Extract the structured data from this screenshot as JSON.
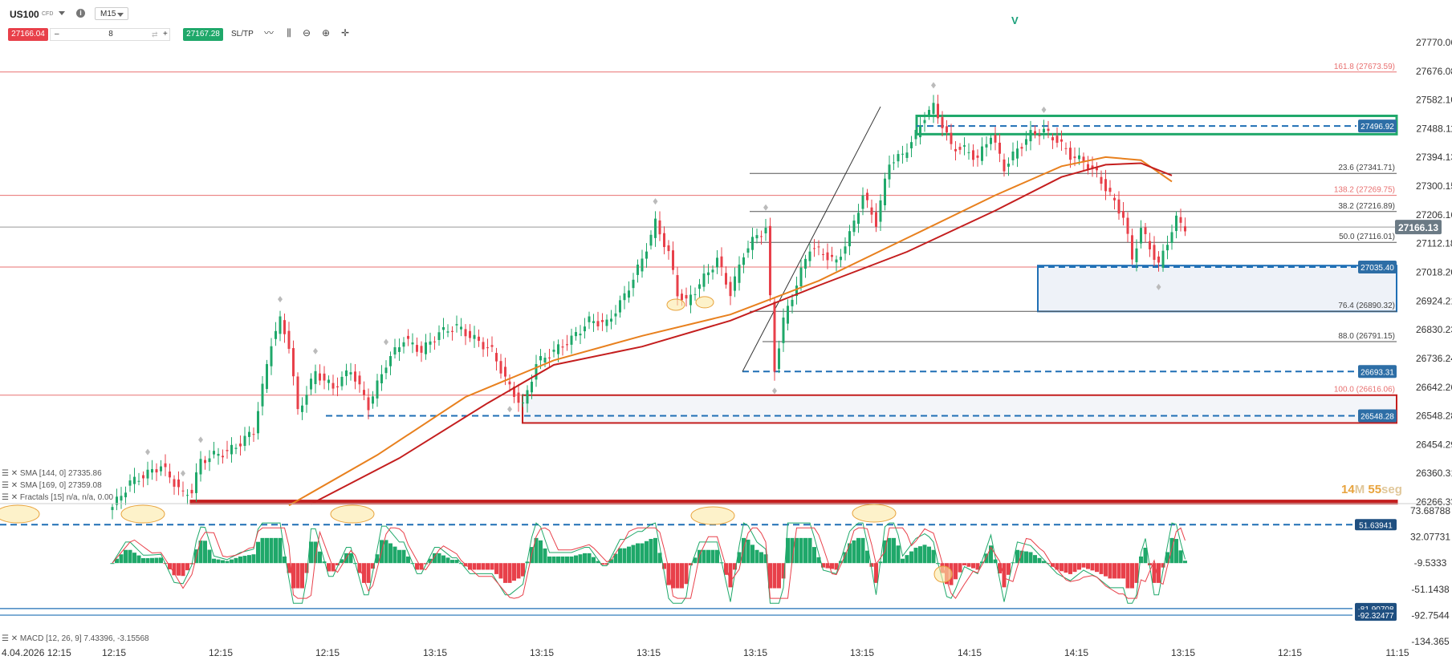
{
  "header": {
    "symbol": "US100",
    "symbol_type": "CFD",
    "timeframe": "M15",
    "sell_price": "27166.04",
    "buy_price": "27167.28",
    "quantity": "8",
    "minus": "–",
    "plus": "+",
    "sltp_label": "SL/TP",
    "icons": [
      "line-tool-icon",
      "candles-icon",
      "zoom-out-icon",
      "zoom-in-icon",
      "crosshair-icon"
    ]
  },
  "marker_v": "V",
  "timer": {
    "minutes": "14",
    "min_unit": "M",
    "seconds": "55",
    "sec_unit": "seg"
  },
  "legend": {
    "sma144": "SMA [144, 0] 27335.86",
    "sma169": "SMA [169, 0] 27359.08",
    "fractals": "Fractals [15] n/a, n/a, 0.00",
    "macd": "MACD [12, 26, 9] 7.43396, -3.15568"
  },
  "colors": {
    "up": "#1fa86a",
    "down": "#e8404a",
    "sma144": "#e8801e",
    "sma169": "#c41e1e",
    "fib": "#555555",
    "level_red": "#e87070",
    "zone_green": "#1fa86a",
    "zone_red": "#c41e1e",
    "zone_blue": "#1f6fb5",
    "price_tag": "#6b7a85"
  },
  "chart_data": [
    {
      "type": "candlestick",
      "title": "US100",
      "timeframe": "M15",
      "y_ticks": [
        27770.06,
        27676.08,
        27582.1,
        27488.11,
        27394.13,
        27300.15,
        27206.16,
        27112.18,
        27018.2,
        26924.21,
        26830.23,
        26736.24,
        26642.26,
        26548.28,
        26454.29,
        26360.31,
        26266.33
      ],
      "y_tick_labels": [
        "27770.06",
        "27676.08",
        "27582.10",
        "27488.11",
        "27394.13",
        "27300.15",
        "27206.16",
        "27112.18",
        "27018.20",
        "26924.21",
        "26830.23",
        "26736.24",
        "26642.26",
        "26548.28",
        "26454.29",
        "26360.31",
        "26266.33"
      ],
      "ylim": [
        26260,
        27830
      ],
      "x_tick_labels": [
        "4.04.2026 12:15",
        "12:15",
        "12:15",
        "12:15",
        "13:15",
        "13:15",
        "13:15",
        "13:15",
        "13:15",
        "14:15",
        "14:15",
        "13:15",
        "12:15",
        "11:15"
      ],
      "current_price": 27166.13,
      "current_price_label": "27166.13",
      "price_path": [
        [
          0,
          26250
        ],
        [
          4,
          26330
        ],
        [
          8,
          26360
        ],
        [
          11,
          26385
        ],
        [
          14,
          26330
        ],
        [
          16,
          26290
        ],
        [
          18,
          26305
        ],
        [
          20,
          26400
        ],
        [
          23,
          26420
        ],
        [
          26,
          26430
        ],
        [
          29,
          26460
        ],
        [
          32,
          26500
        ],
        [
          34,
          26640
        ],
        [
          36,
          26790
        ],
        [
          38,
          26860
        ],
        [
          40,
          26780
        ],
        [
          42,
          26560
        ],
        [
          46,
          26690
        ],
        [
          50,
          26640
        ],
        [
          54,
          26700
        ],
        [
          58,
          26580
        ],
        [
          62,
          26720
        ],
        [
          66,
          26800
        ],
        [
          70,
          26760
        ],
        [
          74,
          26820
        ],
        [
          78,
          26840
        ],
        [
          82,
          26800
        ],
        [
          86,
          26760
        ],
        [
          90,
          26640
        ],
        [
          93,
          26580
        ],
        [
          96,
          26720
        ],
        [
          100,
          26760
        ],
        [
          104,
          26800
        ],
        [
          108,
          26860
        ],
        [
          112,
          26850
        ],
        [
          116,
          26940
        ],
        [
          120,
          27060
        ],
        [
          123,
          27180
        ],
        [
          126,
          27080
        ],
        [
          128,
          26950
        ],
        [
          130,
          26920
        ],
        [
          134,
          27000
        ],
        [
          137,
          27060
        ],
        [
          140,
          26950
        ],
        [
          143,
          27080
        ],
        [
          146,
          27140
        ],
        [
          148,
          27160
        ],
        [
          150,
          26700
        ],
        [
          152,
          26860
        ],
        [
          155,
          26980
        ],
        [
          158,
          27100
        ],
        [
          161,
          27080
        ],
        [
          164,
          27050
        ],
        [
          167,
          27140
        ],
        [
          170,
          27270
        ],
        [
          173,
          27180
        ],
        [
          176,
          27380
        ],
        [
          179,
          27400
        ],
        [
          182,
          27470
        ],
        [
          184,
          27530
        ],
        [
          186,
          27560
        ],
        [
          188,
          27500
        ],
        [
          190,
          27430
        ],
        [
          193,
          27420
        ],
        [
          196,
          27390
        ],
        [
          199,
          27470
        ],
        [
          202,
          27360
        ],
        [
          205,
          27420
        ],
        [
          208,
          27470
        ],
        [
          211,
          27480
        ],
        [
          214,
          27450
        ],
        [
          217,
          27400
        ],
        [
          220,
          27380
        ],
        [
          223,
          27340
        ],
        [
          226,
          27270
        ],
        [
          229,
          27200
        ],
        [
          231,
          27060
        ],
        [
          233,
          27160
        ],
        [
          235,
          27100
        ],
        [
          237,
          27040
        ],
        [
          239,
          27120
        ],
        [
          241,
          27190
        ],
        [
          243,
          27166
        ]
      ],
      "fractal_markers": [
        {
          "i": 8,
          "side": "up"
        },
        {
          "i": 16,
          "side": "up"
        },
        {
          "i": 20,
          "side": "up"
        },
        {
          "i": 38,
          "side": "up"
        },
        {
          "i": 46,
          "side": "up"
        },
        {
          "i": 62,
          "side": "up"
        },
        {
          "i": 90,
          "side": "down"
        },
        {
          "i": 123,
          "side": "up"
        },
        {
          "i": 148,
          "side": "up"
        },
        {
          "i": 150,
          "side": "down"
        },
        {
          "i": 186,
          "side": "up"
        },
        {
          "i": 211,
          "side": "up"
        },
        {
          "i": 237,
          "side": "down"
        }
      ],
      "series": [
        {
          "name": "SMA [144, 0]",
          "values": [
            [
              40,
              26255
            ],
            [
              60,
              26420
            ],
            [
              80,
              26610
            ],
            [
              100,
              26730
            ],
            [
              120,
              26810
            ],
            [
              140,
              26880
            ],
            [
              160,
              26990
            ],
            [
              180,
              27130
            ],
            [
              200,
              27270
            ],
            [
              215,
              27365
            ],
            [
              225,
              27395
            ],
            [
              233,
              27385
            ],
            [
              240,
              27315
            ]
          ]
        },
        {
          "name": "SMA [169, 0]",
          "values": [
            [
              45,
              26260
            ],
            [
              65,
              26410
            ],
            [
              85,
              26590
            ],
            [
              100,
              26715
            ],
            [
              120,
              26775
            ],
            [
              140,
              26860
            ],
            [
              160,
              26975
            ],
            [
              180,
              27085
            ],
            [
              200,
              27220
            ],
            [
              215,
              27330
            ],
            [
              225,
              27370
            ],
            [
              233,
              27375
            ],
            [
              240,
              27335
            ]
          ]
        }
      ],
      "fib_levels": [
        {
          "label": "161.8 (27673.59)",
          "price": 27673.59,
          "color": "red"
        },
        {
          "label": "23.6 (27341.71)",
          "price": 27341.71,
          "color": "gray"
        },
        {
          "label": "138.2 (27269.75)",
          "price": 27269.75,
          "color": "red"
        },
        {
          "label": "38.2 (27216.89)",
          "price": 27216.89,
          "color": "gray"
        },
        {
          "label": "50.0 (27116.01)",
          "price": 27116.01,
          "color": "gray"
        },
        {
          "label": "76.4 (26890.32)",
          "price": 26890.32,
          "color": "gray"
        },
        {
          "label": "88.0 (26791.15)",
          "price": 26791.15,
          "color": "gray"
        },
        {
          "label": "100.0 (26616.06)",
          "price": 26616.06,
          "color": "red"
        }
      ],
      "horizontal_levels": [
        {
          "price": 27496.92,
          "label": "27496.92"
        },
        {
          "price": 27035.4,
          "label": "27035.40"
        },
        {
          "price": 26693.31,
          "label": "26693.31"
        },
        {
          "price": 26548.28,
          "label": "26548.28"
        }
      ],
      "zones": [
        {
          "color": "green",
          "top": 27530,
          "bottom": 27470
        },
        {
          "color": "blue",
          "top": 27040,
          "bottom": 26890
        },
        {
          "color": "red",
          "top": 26616,
          "bottom": 26525
        },
        {
          "color": "red",
          "top": 26270,
          "bottom": 26262
        }
      ],
      "grid": false
    },
    {
      "type": "bar",
      "title": "MACD [12, 26, 9]",
      "values_label": "7.43396, -3.15568",
      "y_tick_labels": [
        "73.68788",
        "32.07731",
        "-9.5333",
        "-51.1438",
        "-92.7544",
        "-134.365"
      ],
      "ylim": [
        -140,
        80
      ],
      "levels": [
        {
          "value": 51.63941,
          "label": "51.63941"
        },
        {
          "value": -81.90708,
          "label": "-81.90708"
        },
        {
          "value": -92.32477,
          "label": "-92.32477"
        }
      ]
    }
  ]
}
